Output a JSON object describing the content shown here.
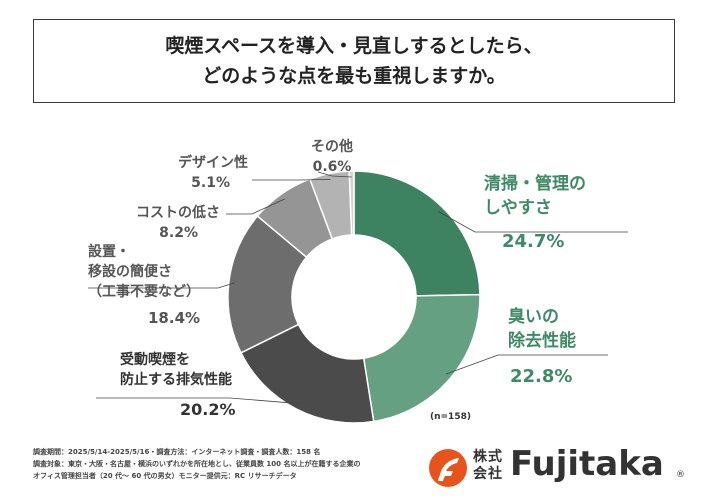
{
  "title_line1": "喫煙スペースを導入・見直しするとしたら、",
  "title_line2": "どのような点を最も重視しますか。",
  "chart_data": {
    "type": "pie",
    "donut": true,
    "categories": [
      "清掃・管理のしやすさ",
      "臭いの除去性能",
      "受動喫煙を防止する排気性能",
      "設置・移設の簡便さ（工事不要など）",
      "コストの低さ",
      "デザイン性",
      "その他"
    ],
    "values": [
      24.7,
      22.8,
      20.2,
      18.4,
      8.2,
      5.1,
      0.6
    ],
    "value_labels": [
      "24.7%",
      "22.8%",
      "20.2%",
      "18.4%",
      "8.2%",
      "5.1%",
      "0.6%"
    ],
    "colors": [
      "#3d8261",
      "#65a083",
      "#4b4b4b",
      "#6d6d6d",
      "#959595",
      "#b3b3b3",
      "#d3d3d3"
    ],
    "label_lines": [
      [
        "清掃・管理の",
        "しやすさ"
      ],
      [
        "臭いの",
        "除去性能"
      ],
      [
        "受動喫煙を",
        "防止する排気性能"
      ],
      [
        "設置・",
        "移設の簡便さ",
        "（工事不要など）"
      ],
      [
        "コストの低さ"
      ],
      [
        "デザイン性"
      ],
      [
        "その他"
      ]
    ],
    "n_label": "(n=158)"
  },
  "footnote": [
    "調査期間：2025/5/14-2025/5/16・調査方法：インターネット調査・調査人数：158 名",
    "調査対象：東京・大阪・名古屋・横浜のいずれかを所在地とし、従業員数 100 名以上が在籍する企業の",
    "オフィス管理担当者（20 代～ 60 代の男女）モニター提供元：RC リサーチデータ"
  ],
  "logo": {
    "jp_top": "株式",
    "jp_bottom": "会社",
    "wordmark": "Fujitaka",
    "registered": "®",
    "brand_color": "#e8531c"
  }
}
